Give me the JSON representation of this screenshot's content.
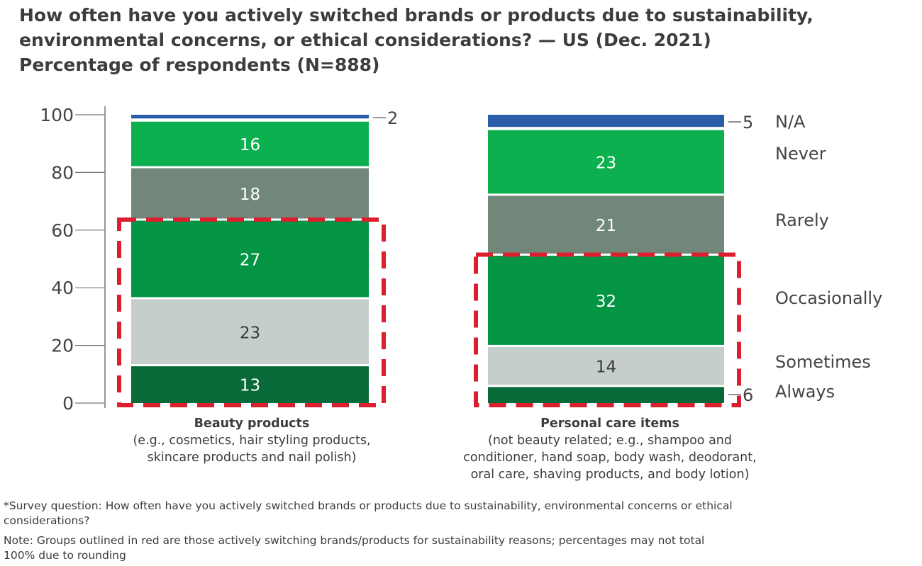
{
  "title_lines": [
    "How often have you actively switched brands or products due to sustainability,",
    "environmental concerns, or ethical considerations? — US (Dec. 2021)",
    "Percentage of respondents (N=888)"
  ],
  "chart_data": {
    "type": "bar",
    "stacked": true,
    "y_ticks": [
      "0",
      "20",
      "40",
      "60",
      "80",
      "100"
    ],
    "ylim": [
      0,
      100
    ],
    "categories": [
      "Beauty products",
      "Personal care items"
    ],
    "category_subtitles": [
      [
        "(e.g., cosmetics, hair styling products,",
        "skincare products and nail polish)"
      ],
      [
        "(not beauty related; e.g., shampoo and",
        "conditioner, hand soap, body wash, deodorant,",
        "oral care, shaving products, and body lotion)"
      ]
    ],
    "series": [
      {
        "name": "Always",
        "color": "#086a39",
        "values": [
          13,
          6
        ],
        "label_color": "#ffffff"
      },
      {
        "name": "Sometimes",
        "color": "#c5ceca",
        "values": [
          23,
          14
        ],
        "label_color": "#3c3c3c"
      },
      {
        "name": "Occasionally",
        "color": "#039543",
        "values": [
          27,
          32
        ],
        "label_color": "#ffffff"
      },
      {
        "name": "Rarely",
        "color": "#718779",
        "values": [
          18,
          21
        ],
        "label_color": "#ffffff"
      },
      {
        "name": "Never",
        "color": "#0db04f",
        "values": [
          16,
          23
        ],
        "label_color": "#ffffff"
      },
      {
        "name": "N/A",
        "color": "#2a5ea8",
        "values": [
          2,
          5
        ],
        "label_color": "#ffffff"
      }
    ],
    "highlight": {
      "series": [
        "Always",
        "Sometimes",
        "Occasionally"
      ],
      "color": "#dc1f2e",
      "style": "dashed outline"
    },
    "legend_placement": "right",
    "grid": false
  },
  "footnotes": [
    "*Survey question: How often have you actively switched brands or products due to sustainability, environmental concerns or ethical considerations?",
    "Note: Groups outlined in red are those actively switching brands/products for sustainability reasons; percentages may not total 100% due to rounding"
  ]
}
